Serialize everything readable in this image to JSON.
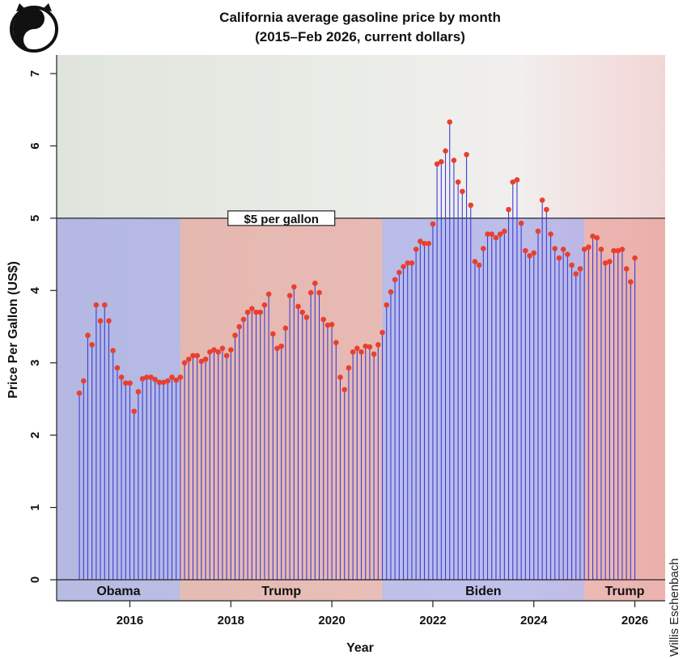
{
  "colors": {
    "stem": "#3b3fd6",
    "dot": "#e8402e",
    "democrat_band": "#8f93e8",
    "republican_band": "#e58f88",
    "axis": "#222222"
  },
  "logo": {
    "name": "yin-yang-cat-logo"
  },
  "credit": "Willis Eschenbach",
  "chart_data": {
    "type": "lollipop",
    "title": "California average gasoline price by month",
    "subtitle": "(2015–Feb 2026, current dollars)",
    "xlabel": "Year",
    "ylabel": "Price Per Gallon (US$)",
    "xlim": [
      2014.55,
      2026.6
    ],
    "ylim": [
      0,
      7
    ],
    "x_ticks": [
      2016,
      2018,
      2020,
      2022,
      2024,
      2026
    ],
    "y_ticks": [
      0,
      1,
      2,
      3,
      4,
      5,
      6,
      7
    ],
    "reference_line": {
      "value": 5,
      "label": "$5 per gallon",
      "label_x": 2019.0
    },
    "eras": [
      {
        "name": "Obama",
        "start": 2014.55,
        "end": 2017.0,
        "party": "D"
      },
      {
        "name": "Trump",
        "start": 2017.0,
        "end": 2021.0,
        "party": "R"
      },
      {
        "name": "Biden",
        "start": 2021.0,
        "end": 2025.0,
        "party": "D"
      },
      {
        "name": "Trump",
        "start": 2025.0,
        "end": 2026.6,
        "party": "R"
      }
    ],
    "series_start": [
      2015,
      1
    ],
    "values": [
      2.58,
      2.75,
      3.38,
      3.25,
      3.8,
      3.58,
      3.8,
      3.58,
      3.17,
      2.93,
      2.8,
      2.72,
      2.72,
      2.33,
      2.6,
      2.78,
      2.8,
      2.8,
      2.77,
      2.73,
      2.73,
      2.75,
      2.8,
      2.76,
      2.8,
      3.0,
      3.05,
      3.1,
      3.1,
      3.02,
      3.05,
      3.15,
      3.18,
      3.15,
      3.2,
      3.1,
      3.18,
      3.38,
      3.5,
      3.6,
      3.7,
      3.75,
      3.7,
      3.7,
      3.8,
      3.95,
      3.4,
      3.2,
      3.23,
      3.48,
      3.93,
      4.05,
      3.78,
      3.7,
      3.63,
      3.97,
      4.1,
      3.97,
      3.6,
      3.52,
      3.53,
      3.28,
      2.8,
      2.63,
      2.93,
      3.15,
      3.2,
      3.15,
      3.23,
      3.22,
      3.12,
      3.25,
      3.42,
      3.8,
      3.98,
      4.15,
      4.25,
      4.33,
      4.38,
      4.38,
      4.57,
      4.68,
      4.65,
      4.65,
      4.92,
      5.75,
      5.78,
      5.93,
      6.33,
      5.8,
      5.5,
      5.37,
      5.88,
      5.18,
      4.4,
      4.35,
      4.58,
      4.78,
      4.78,
      4.73,
      4.78,
      4.82,
      5.12,
      5.5,
      5.53,
      4.93,
      4.55,
      4.48,
      4.52,
      4.82,
      5.25,
      5.12,
      4.78,
      4.58,
      4.45,
      4.57,
      4.5,
      4.35,
      4.23,
      4.3,
      4.57,
      4.6,
      4.75,
      4.73,
      4.57,
      4.38,
      4.4,
      4.55,
      4.55,
      4.57,
      4.3,
      4.12,
      4.45
    ]
  }
}
